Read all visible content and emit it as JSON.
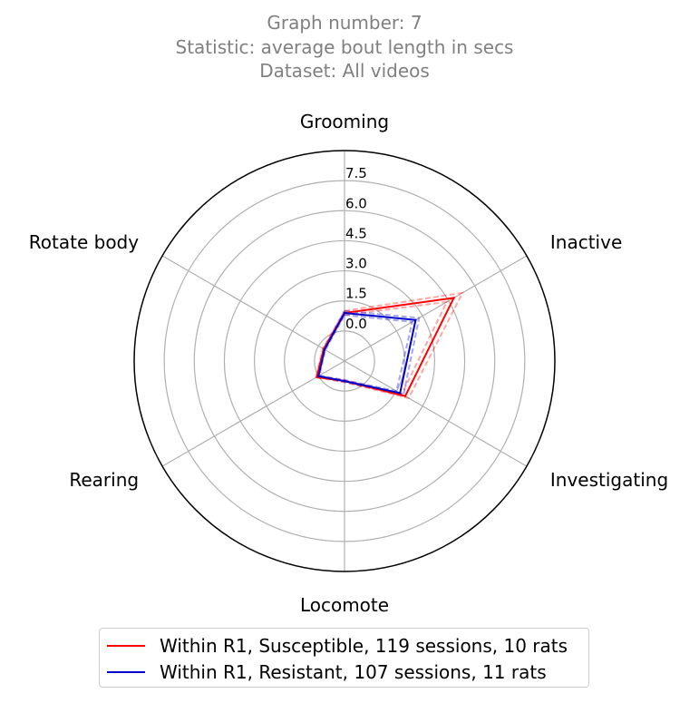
{
  "title": {
    "lines": [
      "Graph number: 7",
      "Statistic: average bout length in secs",
      "Dataset: All videos"
    ]
  },
  "chart_data": {
    "type": "radar",
    "axes": [
      "Grooming",
      "Inactive",
      "Investigating",
      "Locomote",
      "Rearing",
      "Rotate body"
    ],
    "rticks": [
      "0.0",
      "1.5",
      "3.0",
      "4.5",
      "6.0",
      "7.5"
    ],
    "rtick_values": [
      0,
      1.5,
      3.0,
      4.5,
      6.0,
      7.5
    ],
    "rmin": -1.5,
    "rmax": 9.0,
    "grid": true,
    "series": [
      {
        "name": "Within R1, Susceptible, 119 sessions, 10 rats",
        "color": "#ff0000",
        "values": [
          0.9,
          4.8,
          2.0,
          -0.5,
          0.1,
          -0.3
        ],
        "band_upper": [
          1.0,
          5.3,
          2.2,
          -0.45,
          0.15,
          -0.25
        ],
        "band_lower": [
          0.8,
          4.4,
          1.8,
          -0.55,
          0.05,
          -0.35
        ]
      },
      {
        "name": "Within R1, Resistant, 107 sessions, 11 rats",
        "color": "#0000cc",
        "values": [
          0.9,
          2.6,
          1.7,
          -0.5,
          0.0,
          -0.35
        ],
        "band_upper": [
          1.0,
          2.8,
          1.9,
          -0.45,
          0.05,
          -0.3
        ],
        "band_lower": [
          0.8,
          2.4,
          1.5,
          -0.55,
          -0.05,
          -0.4
        ]
      }
    ],
    "legend_position": "bottom-center"
  }
}
